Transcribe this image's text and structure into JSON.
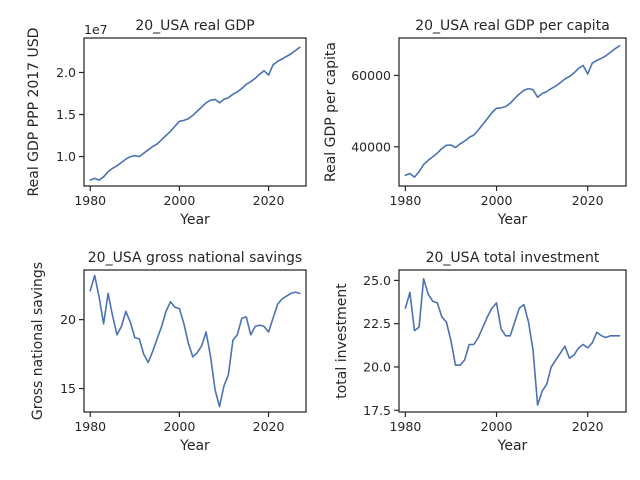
{
  "chart_data": [
    {
      "type": "line",
      "title": "20_USA real GDP",
      "xlabel": "Year",
      "ylabel": "Real GDP PPP 2017 USD",
      "offset_text": "1e7",
      "xlim": [
        1978.6,
        2028.4
      ],
      "ylim": [
        0.65,
        2.41
      ],
      "xticks": [
        1980,
        2000,
        2020
      ],
      "yticks": [
        1.0,
        1.5,
        2.0
      ],
      "ytick_labels": [
        "1.0",
        "1.5",
        "2.0"
      ],
      "series": [
        {
          "x": [
            1980,
            1981,
            1982,
            1983,
            1984,
            1985,
            1986,
            1987,
            1988,
            1989,
            1990,
            1991,
            1992,
            1993,
            1994,
            1995,
            1996,
            1997,
            1998,
            1999,
            2000,
            2001,
            2002,
            2003,
            2004,
            2005,
            2006,
            2007,
            2008,
            2009,
            2010,
            2011,
            2012,
            2013,
            2014,
            2015,
            2016,
            2017,
            2018,
            2019,
            2020,
            2021,
            2022,
            2023,
            2024,
            2025,
            2026,
            2027
          ],
          "values": [
            0.72,
            0.74,
            0.72,
            0.76,
            0.82,
            0.86,
            0.89,
            0.93,
            0.97,
            1.0,
            1.01,
            1.0,
            1.04,
            1.08,
            1.12,
            1.15,
            1.2,
            1.25,
            1.3,
            1.36,
            1.42,
            1.43,
            1.45,
            1.49,
            1.54,
            1.59,
            1.64,
            1.67,
            1.68,
            1.64,
            1.68,
            1.7,
            1.74,
            1.77,
            1.81,
            1.86,
            1.89,
            1.93,
            1.98,
            2.02,
            1.97,
            2.09,
            2.13,
            2.16,
            2.19,
            2.22,
            2.26,
            2.3
          ]
        }
      ]
    },
    {
      "type": "line",
      "title": "20_USA real GDP per capita",
      "xlabel": "Year",
      "ylabel": "Real GDP per capita",
      "xlim": [
        1978.6,
        2028.4
      ],
      "ylim": [
        29000,
        70500
      ],
      "xticks": [
        1980,
        2000,
        2020
      ],
      "yticks": [
        40000,
        60000
      ],
      "ytick_labels": [
        "40000",
        "60000"
      ],
      "series": [
        {
          "x": [
            1980,
            1981,
            1982,
            1983,
            1984,
            1985,
            1986,
            1987,
            1988,
            1989,
            1990,
            1991,
            1992,
            1993,
            1994,
            1995,
            1996,
            1997,
            1998,
            1999,
            2000,
            2001,
            2002,
            2003,
            2004,
            2005,
            2006,
            2007,
            2008,
            2009,
            2010,
            2011,
            2012,
            2013,
            2014,
            2015,
            2016,
            2017,
            2018,
            2019,
            2020,
            2021,
            2022,
            2023,
            2024,
            2025,
            2026,
            2027
          ],
          "values": [
            32000,
            32500,
            31500,
            33000,
            35000,
            36200,
            37200,
            38200,
            39500,
            40400,
            40500,
            39800,
            40800,
            41600,
            42600,
            43300,
            44700,
            46300,
            47900,
            49600,
            50800,
            50900,
            51300,
            52200,
            53600,
            54800,
            55800,
            56300,
            56000,
            53900,
            54900,
            55500,
            56300,
            57000,
            58000,
            59000,
            59700,
            60700,
            62000,
            62800,
            60400,
            63500,
            64200,
            64800,
            65500,
            66500,
            67500,
            68300
          ]
        }
      ]
    },
    {
      "type": "line",
      "title": "20_USA gross national savings",
      "xlabel": "Year",
      "ylabel": "Gross national savings",
      "xlim": [
        1978.6,
        2028.4
      ],
      "ylim": [
        13.3,
        23.6
      ],
      "xticks": [
        1980,
        2000,
        2020
      ],
      "yticks": [
        15,
        20
      ],
      "ytick_labels": [
        "15",
        "20"
      ],
      "series": [
        {
          "x": [
            1980,
            1981,
            1982,
            1983,
            1984,
            1985,
            1986,
            1987,
            1988,
            1989,
            1990,
            1991,
            1992,
            1993,
            1994,
            1995,
            1996,
            1997,
            1998,
            1999,
            2000,
            2001,
            2002,
            2003,
            2004,
            2005,
            2006,
            2007,
            2008,
            2009,
            2010,
            2011,
            2012,
            2013,
            2014,
            2015,
            2016,
            2017,
            2018,
            2019,
            2020,
            2021,
            2022,
            2023,
            2024,
            2025,
            2026,
            2027
          ],
          "values": [
            22.1,
            23.2,
            21.6,
            19.7,
            21.9,
            20.3,
            18.9,
            19.5,
            20.6,
            19.8,
            18.7,
            18.6,
            17.5,
            16.9,
            17.7,
            18.6,
            19.5,
            20.6,
            21.3,
            20.9,
            20.8,
            19.7,
            18.3,
            17.3,
            17.6,
            18.1,
            19.1,
            17.3,
            14.9,
            13.7,
            15.2,
            16.0,
            18.5,
            18.9,
            20.1,
            20.2,
            18.9,
            19.5,
            19.6,
            19.5,
            19.1,
            20.1,
            21.1,
            21.5,
            21.7,
            21.9,
            22.0,
            21.9
          ]
        }
      ]
    },
    {
      "type": "line",
      "title": "20_USA total investment",
      "xlabel": "Year",
      "ylabel": "total investment",
      "xlim": [
        1978.6,
        2028.4
      ],
      "ylim": [
        17.4,
        25.6
      ],
      "xticks": [
        1980,
        2000,
        2020
      ],
      "yticks": [
        17.5,
        20.0,
        22.5,
        25.0
      ],
      "ytick_labels": [
        "17.5",
        "20.0",
        "22.5",
        "25.0"
      ],
      "series": [
        {
          "x": [
            1980,
            1981,
            1982,
            1983,
            1984,
            1985,
            1986,
            1987,
            1988,
            1989,
            1990,
            1991,
            1992,
            1993,
            1994,
            1995,
            1996,
            1997,
            1998,
            1999,
            2000,
            2001,
            2002,
            2003,
            2004,
            2005,
            2006,
            2007,
            2008,
            2009,
            2010,
            2011,
            2012,
            2013,
            2014,
            2015,
            2016,
            2017,
            2018,
            2019,
            2020,
            2021,
            2022,
            2023,
            2024,
            2025,
            2026,
            2027
          ],
          "values": [
            23.4,
            24.3,
            22.1,
            22.3,
            25.1,
            24.2,
            23.8,
            23.7,
            22.9,
            22.6,
            21.5,
            20.1,
            20.1,
            20.4,
            21.3,
            21.3,
            21.7,
            22.3,
            22.9,
            23.4,
            23.7,
            22.2,
            21.8,
            21.8,
            22.6,
            23.4,
            23.6,
            22.6,
            21.0,
            17.8,
            18.6,
            19.0,
            20.0,
            20.4,
            20.8,
            21.2,
            20.5,
            20.7,
            21.1,
            21.3,
            21.1,
            21.4,
            22.0,
            21.8,
            21.7,
            21.8,
            21.8,
            21.8
          ]
        }
      ]
    }
  ]
}
